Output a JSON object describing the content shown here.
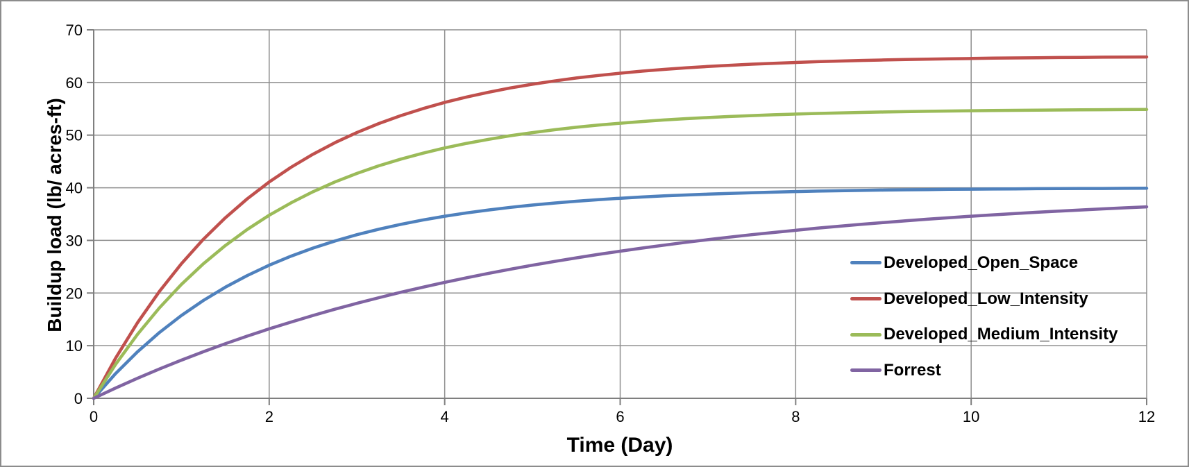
{
  "window": {
    "background": "#ffffff",
    "border_color": "#8c8c8c"
  },
  "styles": {
    "gridline_color": "#8e8e8e",
    "axis_color": "#7f7f7f",
    "tick_label_color": "#000000",
    "title_color": "#000000",
    "line_width": 4.5
  },
  "chart_data": {
    "type": "line",
    "title": "",
    "xlabel": "Time (Day)",
    "ylabel": "Buildup load (lb/ acres-ft)",
    "xlim": [
      0,
      12
    ],
    "ylim": [
      0,
      70
    ],
    "x_ticks": [
      0,
      2,
      4,
      6,
      8,
      10,
      12
    ],
    "y_ticks": [
      0,
      10,
      20,
      30,
      40,
      50,
      60,
      70
    ],
    "grid": true,
    "legend_position": "right-middle",
    "x": [
      0,
      0.25,
      0.5,
      0.75,
      1,
      1.25,
      1.5,
      1.75,
      2,
      2.25,
      2.5,
      2.75,
      3,
      3.25,
      3.5,
      3.75,
      4,
      4.25,
      4.5,
      4.75,
      5,
      5.25,
      5.5,
      5.75,
      6,
      6.25,
      6.5,
      6.75,
      7,
      7.25,
      7.5,
      7.75,
      8,
      8.25,
      8.5,
      8.75,
      9,
      9.25,
      9.5,
      9.75,
      10,
      10.25,
      10.5,
      10.75,
      11,
      11.25,
      11.5,
      11.75,
      12
    ],
    "series": [
      {
        "name": "Developed_Open_Space",
        "color": "#4F81BD",
        "asymptote": 40,
        "values": [
          0,
          4.7,
          8.85,
          12.51,
          15.74,
          18.59,
          21.1,
          23.32,
          25.29,
          27.01,
          28.54,
          29.89,
          31.08,
          32.12,
          33.05,
          33.86,
          34.59,
          35.22,
          35.78,
          36.28,
          36.72,
          37.1,
          37.44,
          37.74,
          38.01,
          38.24,
          38.45,
          38.63,
          38.79,
          38.93,
          39.06,
          39.17,
          39.27,
          39.36,
          39.43,
          39.5,
          39.56,
          39.61,
          39.65,
          39.7,
          39.73,
          39.76,
          39.79,
          39.82,
          39.84,
          39.86,
          39.87,
          39.89,
          39.9
        ]
      },
      {
        "name": "Developed_Low_Intensity",
        "color": "#C0504D",
        "asymptote": 65,
        "values": [
          0,
          7.64,
          14.38,
          20.33,
          25.58,
          30.21,
          34.29,
          37.9,
          41.09,
          43.9,
          46.38,
          48.57,
          50.5,
          52.2,
          53.7,
          55.03,
          56.21,
          57.24,
          58.15,
          58.96,
          59.66,
          60.29,
          60.85,
          61.33,
          61.76,
          62.15,
          62.48,
          62.78,
          63.04,
          63.26,
          63.47,
          63.65,
          63.81,
          63.95,
          64.07,
          64.18,
          64.28,
          64.36,
          64.44,
          64.5,
          64.56,
          64.62,
          64.66,
          64.7,
          64.74,
          64.77,
          64.8,
          64.82,
          64.84
        ]
      },
      {
        "name": "Developed_Medium_Intensity",
        "color": "#9BBB59",
        "asymptote": 55,
        "values": [
          0,
          6.46,
          12.17,
          17.2,
          21.64,
          25.56,
          29.02,
          32.07,
          34.77,
          37.14,
          39.24,
          41.1,
          42.73,
          44.17,
          45.44,
          46.56,
          47.56,
          48.43,
          49.2,
          49.89,
          50.48,
          51.02,
          51.49,
          51.9,
          52.26,
          52.59,
          52.87,
          53.12,
          53.34,
          53.53,
          53.71,
          53.86,
          53.99,
          54.11,
          54.21,
          54.31,
          54.39,
          54.46,
          54.52,
          54.58,
          54.63,
          54.67,
          54.71,
          54.74,
          54.78,
          54.8,
          54.83,
          54.85,
          54.87
        ]
      },
      {
        "name": "Forrest",
        "color": "#8064A2",
        "asymptote": 40,
        "values": [
          0,
          1.95,
          3.81,
          5.57,
          7.25,
          8.85,
          10.37,
          11.81,
          13.19,
          14.49,
          15.74,
          16.92,
          18.05,
          19.12,
          20.14,
          21.11,
          22.03,
          22.9,
          23.74,
          24.53,
          25.29,
          26.0,
          26.68,
          27.34,
          27.95,
          28.54,
          29.1,
          29.63,
          30.14,
          30.62,
          31.08,
          31.51,
          31.92,
          32.32,
          32.69,
          33.05,
          33.39,
          33.71,
          34.02,
          34.31,
          34.59,
          34.85,
          35.1,
          35.34,
          35.57,
          35.78,
          35.99,
          36.18,
          36.37
        ]
      }
    ]
  }
}
